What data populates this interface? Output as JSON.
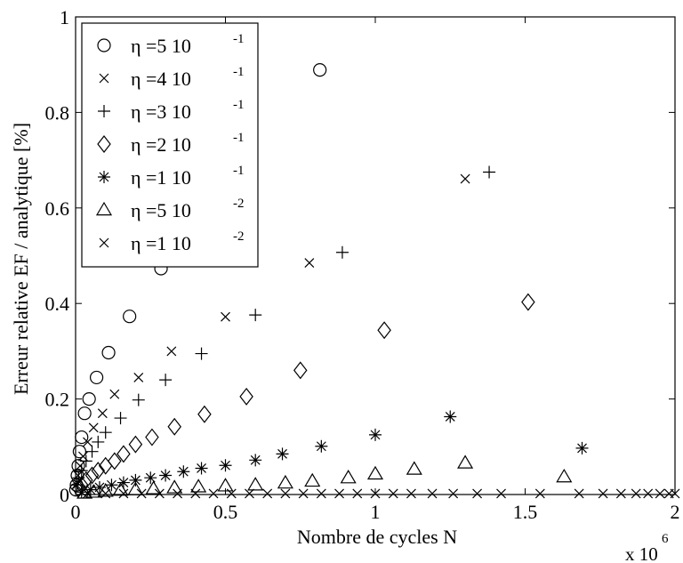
{
  "chart_data": {
    "type": "scatter",
    "xlabel": "Nombre de cycles N",
    "ylabel": "Erreur relative EF / analytique [%]",
    "x_multiplier_label": {
      "base": "x 10",
      "exp": "6"
    },
    "xlim": [
      0,
      2
    ],
    "ylim": [
      0,
      1
    ],
    "x_ticks": [
      0,
      0.5,
      1,
      1.5,
      2
    ],
    "x_tick_labels": [
      "0",
      "0.5",
      "1",
      "1.5",
      "2"
    ],
    "y_ticks": [
      0,
      0.2,
      0.4,
      0.6,
      0.8,
      1
    ],
    "y_tick_labels": [
      "0",
      "0.2",
      "0.4",
      "0.6",
      "0.8",
      "1"
    ],
    "grid": false,
    "legend_position": "top-left",
    "series": [
      {
        "name": "η =5  10",
        "name_exp": "-1",
        "marker": "circle",
        "x": [
          0.001,
          0.003,
          0.006,
          0.009,
          0.013,
          0.02,
          0.03,
          0.045,
          0.07,
          0.11,
          0.18,
          0.285,
          0.815
        ],
        "y": [
          0.01,
          0.02,
          0.04,
          0.06,
          0.09,
          0.12,
          0.17,
          0.2,
          0.245,
          0.297,
          0.373,
          0.473,
          0.889
        ]
      },
      {
        "name": "η =4  10",
        "name_exp": "-1",
        "marker": "x",
        "x": [
          0.003,
          0.008,
          0.015,
          0.025,
          0.04,
          0.06,
          0.09,
          0.13,
          0.21,
          0.32,
          0.5,
          0.78,
          1.3
        ],
        "y": [
          0.02,
          0.04,
          0.06,
          0.08,
          0.11,
          0.14,
          0.17,
          0.21,
          0.245,
          0.3,
          0.372,
          0.485,
          0.661
        ]
      },
      {
        "name": "η =3  10",
        "name_exp": "-1",
        "marker": "plus",
        "x": [
          0.005,
          0.01,
          0.02,
          0.035,
          0.055,
          0.075,
          0.1,
          0.15,
          0.21,
          0.3,
          0.42,
          0.6,
          0.89,
          1.38
        ],
        "y": [
          0.02,
          0.035,
          0.05,
          0.07,
          0.09,
          0.11,
          0.13,
          0.16,
          0.198,
          0.24,
          0.295,
          0.376,
          0.507,
          0.675
        ]
      },
      {
        "name": "η =2  10",
        "name_exp": "-1",
        "marker": "diamond",
        "x": [
          0.01,
          0.02,
          0.035,
          0.055,
          0.075,
          0.1,
          0.13,
          0.16,
          0.2,
          0.255,
          0.33,
          0.43,
          0.57,
          0.75,
          1.03,
          1.51
        ],
        "y": [
          0.012,
          0.02,
          0.03,
          0.04,
          0.05,
          0.06,
          0.07,
          0.085,
          0.105,
          0.12,
          0.142,
          0.168,
          0.205,
          0.26,
          0.344,
          0.403
        ]
      },
      {
        "name": "η =1  10",
        "name_exp": "-1",
        "marker": "asterisk",
        "x": [
          0.02,
          0.05,
          0.08,
          0.12,
          0.16,
          0.2,
          0.25,
          0.3,
          0.36,
          0.42,
          0.5,
          0.6,
          0.69,
          0.82,
          1.0,
          1.25,
          1.69
        ],
        "y": [
          0.005,
          0.01,
          0.015,
          0.02,
          0.025,
          0.03,
          0.035,
          0.04,
          0.048,
          0.055,
          0.061,
          0.072,
          0.085,
          0.101,
          0.125,
          0.163,
          0.097
        ]
      },
      {
        "name": "η =5  10",
        "name_exp": "-2",
        "marker": "triangle",
        "x": [
          0.03,
          0.06,
          0.1,
          0.15,
          0.2,
          0.26,
          0.33,
          0.41,
          0.5,
          0.6,
          0.7,
          0.79,
          0.91,
          1.0,
          1.13,
          1.3,
          1.63
        ],
        "y": [
          0.003,
          0.005,
          0.007,
          0.009,
          0.01,
          0.012,
          0.014,
          0.016,
          0.018,
          0.02,
          0.024,
          0.028,
          0.035,
          0.043,
          0.053,
          0.066,
          0.037
        ]
      },
      {
        "name": "η =1  10",
        "name_exp": "-2",
        "marker": "x",
        "x": [
          0.04,
          0.1,
          0.16,
          0.22,
          0.28,
          0.34,
          0.4,
          0.46,
          0.52,
          0.58,
          0.64,
          0.7,
          0.76,
          0.82,
          0.88,
          0.94,
          1.0,
          1.06,
          1.12,
          1.19,
          1.26,
          1.34,
          1.42,
          1.55,
          1.68,
          1.76,
          1.82,
          1.87,
          1.91,
          1.95,
          1.98,
          2.0
        ],
        "y": [
          0.002,
          0.002,
          0.002,
          0.002,
          0.002,
          0.002,
          0.002,
          0.002,
          0.002,
          0.002,
          0.002,
          0.002,
          0.002,
          0.002,
          0.002,
          0.002,
          0.002,
          0.002,
          0.002,
          0.002,
          0.002,
          0.002,
          0.002,
          0.002,
          0.002,
          0.002,
          0.002,
          0.002,
          0.002,
          0.002,
          0.002,
          0.002
        ]
      }
    ]
  }
}
